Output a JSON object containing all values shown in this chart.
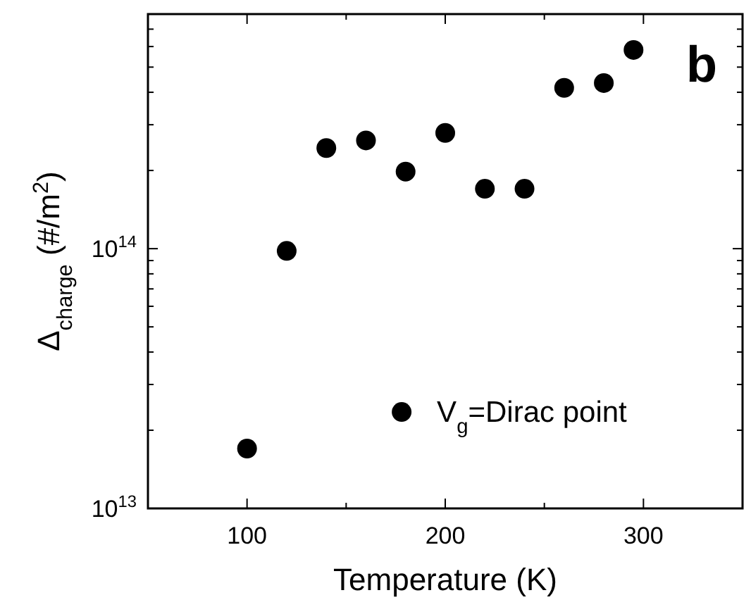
{
  "chart_data": {
    "type": "scatter",
    "xlabel": "Temperature (K)",
    "ylabel": "Δ$_{charge}$ (#/m$^{2}$)",
    "annotations": [
      "b"
    ],
    "x": [
      100,
      120,
      140,
      160,
      180,
      200,
      220,
      240,
      260,
      280,
      295
    ],
    "series": [
      {
        "name": "V$_{g}$=Dirac point",
        "color": "#000000",
        "values": [
          17000000000000.0,
          98000000000000.0,
          244000000000000.0,
          261000000000000.0,
          198000000000000.0,
          279000000000000.0,
          170000000000000.0,
          170000000000000.0,
          416000000000000.0,
          434000000000000.0,
          582000000000000.0
        ]
      }
    ],
    "log": "y",
    "xlim": [
      50,
      350
    ],
    "ylim": [
      10000000000000.0,
      800000000000000.0
    ],
    "xticks": [
      100,
      {
        "value": 150,
        "label": null
      },
      200,
      {
        "value": 250,
        "label": null
      },
      300,
      {
        "value": 350,
        "label": null
      }
    ],
    "yticks": [
      {
        "value": 10000000000000.0,
        "label": "10$^{13}$"
      },
      {
        "value": 20000000000000.0,
        "label": null
      },
      {
        "value": 30000000000000.0,
        "label": null
      },
      {
        "value": 40000000000000.0,
        "label": null
      },
      {
        "value": 50000000000000.0,
        "label": null
      },
      {
        "value": 60000000000000.0,
        "label": null
      },
      {
        "value": 70000000000000.0,
        "label": null
      },
      {
        "value": 80000000000000.0,
        "label": null
      },
      {
        "value": 90000000000000.0,
        "label": null
      },
      {
        "value": 100000000000000.0,
        "label": "10$^{14}$"
      },
      {
        "value": 200000000000000.0,
        "label": null
      },
      {
        "value": 300000000000000.0,
        "label": null
      },
      {
        "value": 400000000000000.0,
        "label": null
      },
      {
        "value": 500000000000000.0,
        "label": null
      },
      {
        "value": 600000000000000.0,
        "label": null
      },
      {
        "value": 700000000000000.0,
        "label": null
      },
      {
        "value": 800000000000000.0,
        "label": null
      }
    ],
    "marker": "circle",
    "legend": "bottom right",
    "grid": false
  }
}
